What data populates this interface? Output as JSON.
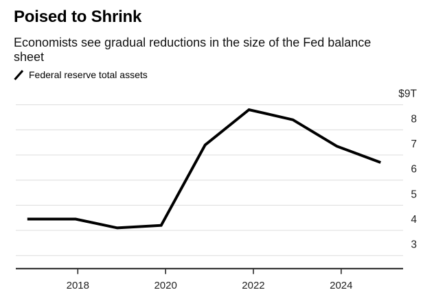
{
  "header": {
    "title": "Poised to Shrink",
    "subtitle": "Economists see gradual reductions in the size of the Fed balance sheet"
  },
  "legend": {
    "icon": "line-slash-icon",
    "label": "Federal reserve total assets"
  },
  "chart_data": {
    "type": "line",
    "title": "Poised to Shrink",
    "subtitle": "Economists see gradual reductions in the size of the Fed balance sheet",
    "unit": "USD trillions",
    "series": [
      {
        "name": "Federal reserve total assets",
        "color": "#000000",
        "x": [
          2016.85,
          2017.95,
          2018.9,
          2019.9,
          2020.9,
          2021.9,
          2022.9,
          2023.9,
          2024.9
        ],
        "values": [
          4.45,
          4.45,
          4.1,
          4.2,
          7.4,
          8.8,
          8.4,
          7.35,
          6.7
        ]
      }
    ],
    "x_axis": {
      "ticks": [
        2018,
        2020,
        2022,
        2024
      ],
      "tick_labels": [
        "2018",
        "2020",
        "2022",
        "2024"
      ],
      "range": [
        2016.6,
        2025.4
      ]
    },
    "y_axis": {
      "side": "right",
      "ticks": [
        9,
        8,
        7,
        6,
        5,
        4,
        3
      ],
      "tick_labels": [
        "$9T",
        "8",
        "7",
        "6",
        "5",
        "4",
        "3"
      ],
      "range": [
        2.5,
        9.4
      ]
    },
    "grid": "horizontal",
    "legend_position": "top-left",
    "colors": {
      "line": "#000000",
      "grid": "#dcdcdc",
      "axis": "#1a1a1a",
      "tick_text": "#1f1f1f",
      "background": "#ffffff"
    }
  }
}
